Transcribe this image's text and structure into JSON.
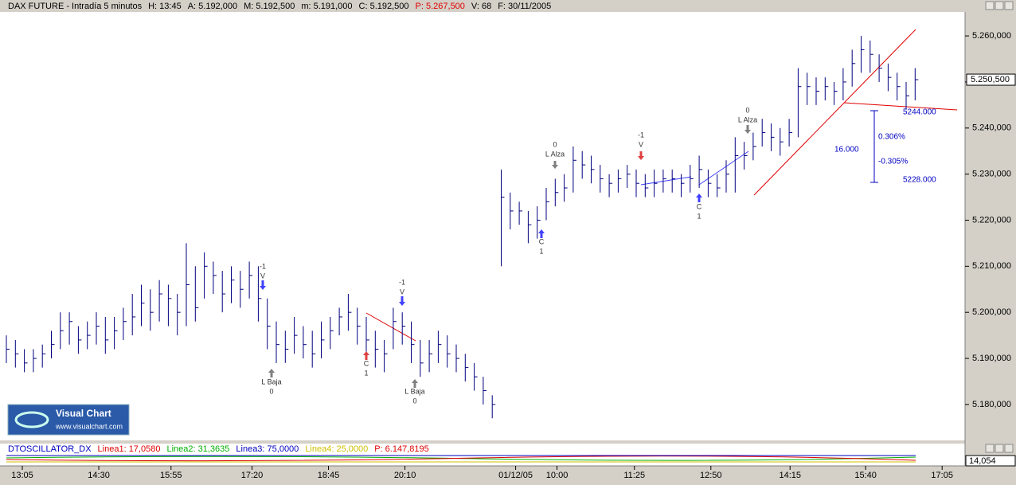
{
  "header": {
    "title": "DAX FUTURE - Intradía 5 minutos",
    "items": [
      "H: 13:45",
      "A: 5.192,000",
      "M: 5.192,500",
      "m: 5.191,000",
      "C: 5.192,500",
      "P: 5.267,500",
      "V: 68",
      "F: 30/11/2005"
    ]
  },
  "chart_data": {
    "type": "ohlc",
    "color": "#00007f",
    "high": [
      5195,
      5194,
      5192,
      5192,
      5193,
      5196,
      5200,
      5200,
      5197,
      5198,
      5200,
      5199,
      5199,
      5201,
      5204,
      5206,
      5205,
      5207,
      5206,
      5204,
      5215,
      5210,
      5213,
      5211,
      5209,
      5210,
      5209,
      5211,
      5210,
      5203,
      5198,
      5196,
      5199,
      5197,
      5196,
      5198,
      5199,
      5201,
      5204,
      5201,
      5199,
      5196,
      5194,
      5201,
      5200,
      5198,
      5194,
      5194,
      5196,
      5195,
      5193,
      5191,
      5189,
      5186,
      5182,
      5231,
      5226,
      5224,
      5222,
      5223,
      5227,
      5229,
      5230,
      5236,
      5235,
      5234,
      5232,
      5230,
      5231,
      5232,
      5231,
      5230,
      5231,
      5231,
      5231,
      5230,
      5232,
      5234,
      5231,
      5230,
      5233,
      5238,
      5237,
      5239,
      5242,
      5241,
      5240,
      5242,
      5253,
      5252,
      5251,
      5251,
      5250,
      5253,
      5257,
      5260,
      5259,
      5256,
      5254,
      5252,
      5250,
      5253
    ],
    "low": [
      5189,
      5188,
      5187,
      5187,
      5188,
      5190,
      5192,
      5193,
      5191,
      5192,
      5193,
      5191,
      5192,
      5194,
      5195,
      5197,
      5196,
      5198,
      5197,
      5195,
      5197,
      5198,
      5203,
      5204,
      5200,
      5202,
      5201,
      5203,
      5198,
      5192,
      5189,
      5189,
      5191,
      5190,
      5188,
      5190,
      5192,
      5195,
      5196,
      5193,
      5190,
      5188,
      5187,
      5192,
      5193,
      5189,
      5186,
      5187,
      5189,
      5188,
      5187,
      5185,
      5183,
      5180,
      5177,
      5210,
      5218,
      5219,
      5215,
      5216,
      5220,
      5223,
      5224,
      5226,
      5229,
      5228,
      5226,
      5225,
      5226,
      5227,
      5225,
      5225,
      5225,
      5226,
      5226,
      5225,
      5226,
      5227,
      5225,
      5225,
      5226,
      5226,
      5231,
      5233,
      5236,
      5235,
      5234,
      5236,
      5238,
      5245,
      5245,
      5246,
      5245,
      5246,
      5249,
      5252,
      5252,
      5250,
      5248,
      5246,
      5244,
      5246
    ],
    "close": [
      5192,
      5191,
      5189,
      5190,
      5191,
      5193,
      5196,
      5198,
      5194,
      5195,
      5197,
      5194,
      5196,
      5198,
      5199,
      5202,
      5200,
      5204,
      5203,
      5200,
      5206,
      5201,
      5210,
      5208,
      5204,
      5207,
      5205,
      5208,
      5203,
      5197,
      5193,
      5192,
      5195,
      5193,
      5191,
      5194,
      5196,
      5199,
      5200,
      5197,
      5194,
      5192,
      5191,
      5198,
      5197,
      5193,
      5189,
      5191,
      5193,
      5191,
      5190,
      5188,
      5186,
      5183,
      5180,
      5225,
      5222,
      5222,
      5219,
      5220,
      5224,
      5226,
      5227,
      5233,
      5232,
      5231,
      5229,
      5228,
      5229,
      5230,
      5228,
      5227,
      5228,
      5229,
      5229,
      5228,
      5229,
      5231,
      5228,
      5227,
      5230,
      5234,
      5234,
      5236,
      5239,
      5238,
      5237,
      5239,
      5249,
      5249,
      5248,
      5249,
      5248,
      5250,
      5254,
      5257,
      5256,
      5253,
      5251,
      5249,
      5247,
      5250.5
    ],
    "ylim": [
      5172.2,
      5265.2
    ],
    "yticks": [
      {
        "value": 5180,
        "label": "5.180,000"
      },
      {
        "value": 5190,
        "label": "5.190,000"
      },
      {
        "value": 5200,
        "label": "5.200,000"
      },
      {
        "value": 5210,
        "label": "5.210,000"
      },
      {
        "value": 5220,
        "label": "5.220,000"
      },
      {
        "value": 5230,
        "label": "5.230,000"
      },
      {
        "value": 5240,
        "label": "5.240,000"
      },
      {
        "value": 5250,
        "label": "5.250,000"
      },
      {
        "value": 5260,
        "label": "5.260,000"
      }
    ],
    "xticks": [
      {
        "value": 1.77,
        "label": "13:05"
      },
      {
        "value": 10.27,
        "label": "14:30"
      },
      {
        "value": 18.3,
        "label": "15:55"
      },
      {
        "value": 27.3,
        "label": "17:20"
      },
      {
        "value": 35.8,
        "label": "18:45"
      },
      {
        "value": 44.3,
        "label": "20:10"
      },
      {
        "value": 56.6,
        "label": "01/12/05"
      },
      {
        "value": 61.2,
        "label": "10:00"
      },
      {
        "value": 69.8,
        "label": "11:25"
      },
      {
        "value": 78.3,
        "label": "12:50"
      },
      {
        "value": 87.1,
        "label": "14:15"
      },
      {
        "value": 95.5,
        "label": "15:40"
      },
      {
        "value": 104,
        "label": "17:05"
      }
    ],
    "last_price": {
      "value": 5250.5,
      "label": "5.250,500"
    }
  },
  "oscillator": {
    "name": "DTOSCILLATOR_DX",
    "items": [
      "Linea1: 17,0580",
      "Linea2: 31,3635",
      "Linea3: 75,0000",
      "Linea4: 25,0000",
      "P: 6.147,8195"
    ],
    "value_label": "14,054"
  },
  "annotations": [
    [
      "-1",
      "V"
    ],
    [
      "L Baja",
      "0"
    ],
    [
      "C",
      "1"
    ],
    [
      "-1",
      "V"
    ],
    [
      "L Baja",
      "0"
    ],
    [
      "0",
      "L Alza"
    ],
    [
      "C",
      "1"
    ],
    [
      "-1",
      "V"
    ],
    [
      "C",
      "1"
    ],
    [
      "0",
      "L Alza"
    ]
  ],
  "measure": [
    "5244.000",
    "0.306%",
    "16.000",
    "-0.305%",
    "5228.000"
  ],
  "logo": {
    "name": "Visual Chart",
    "url": "www.visualchart.com"
  }
}
